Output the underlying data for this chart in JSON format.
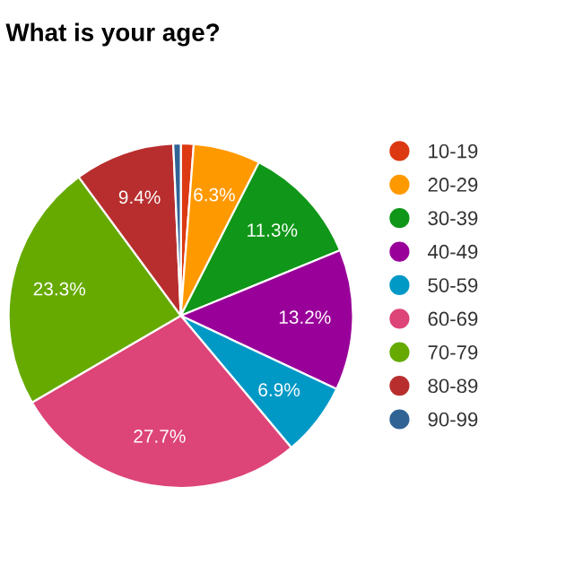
{
  "chart_data": {
    "type": "pie",
    "title": "What is your age?",
    "categories": [
      "10-19",
      "20-29",
      "30-39",
      "40-49",
      "50-59",
      "60-69",
      "70-79",
      "80-89",
      "90-99"
    ],
    "values": [
      1.2,
      6.3,
      11.3,
      13.2,
      6.9,
      27.7,
      23.3,
      9.4,
      0.7
    ],
    "colors": [
      "#dc3912",
      "#ff9900",
      "#109618",
      "#990099",
      "#0099c6",
      "#dd4477",
      "#66aa00",
      "#b82e2e",
      "#316395"
    ],
    "value_labels": [
      null,
      "6.3%",
      "11.3%",
      "13.2%",
      "6.9%",
      "27.7%",
      "23.3%",
      "9.4%",
      null
    ],
    "legend": "right"
  }
}
